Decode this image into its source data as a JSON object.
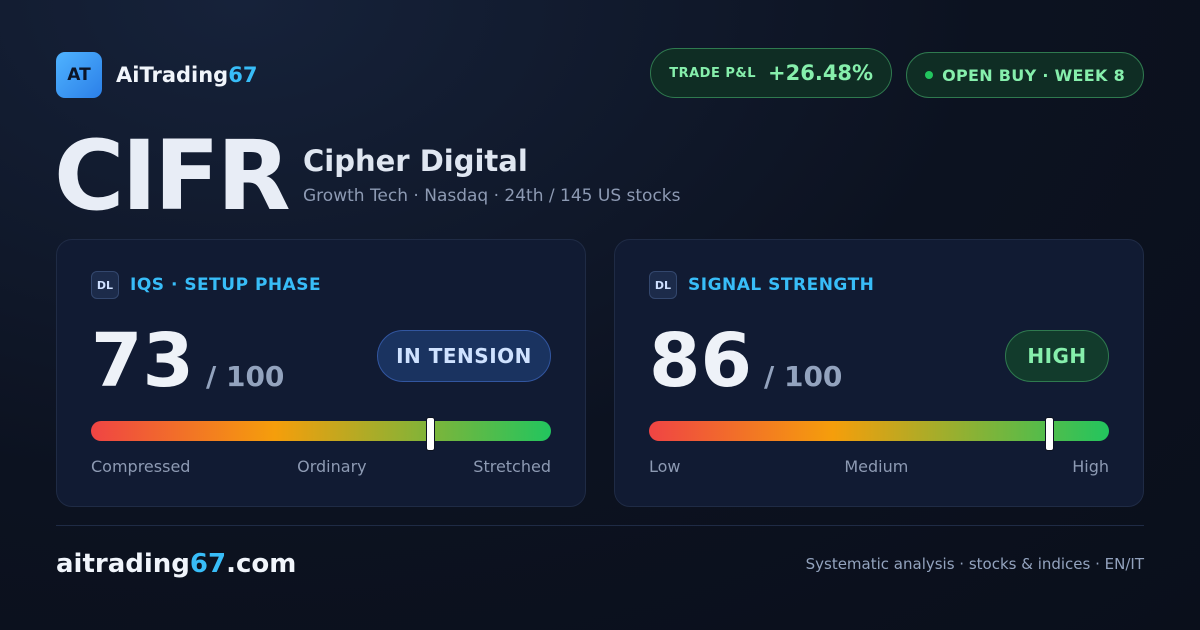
{
  "brand": {
    "logo_initials": "AT",
    "name_main": "AiTrading",
    "name_accent": "67"
  },
  "header": {
    "pnl_label": "TRADE P&L",
    "pnl_value": "+26.48%",
    "status_text": "OPEN BUY · WEEK 8"
  },
  "stock": {
    "ticker": "CIFR",
    "company": "Cipher Digital",
    "subtitle": "Growth Tech · Nasdaq · 24th / 145 US stocks"
  },
  "iqs": {
    "badge": "DL",
    "title": "IQS · SETUP PHASE",
    "score": "73",
    "denominator": "/ 100",
    "state": "IN TENSION",
    "marker_fraction": 0.738,
    "scale": [
      "Compressed",
      "Ordinary",
      "Stretched"
    ]
  },
  "signal": {
    "badge": "DL",
    "title": "SIGNAL STRENGTH",
    "score": "86",
    "denominator": "/ 100",
    "state": "HIGH",
    "marker_fraction": 0.87,
    "scale": [
      "Low",
      "Medium",
      "High"
    ]
  },
  "footer": {
    "site_main": "aitrading",
    "site_accent": "67",
    "site_tld": ".com",
    "tagline": "Systematic analysis · stocks & indices · EN/IT"
  },
  "colors": {
    "accent": "#38bdf8",
    "positive": "#86efac",
    "bar_start": "#ef4444",
    "bar_mid": "#f59e0b",
    "bar_end": "#22c55e"
  }
}
